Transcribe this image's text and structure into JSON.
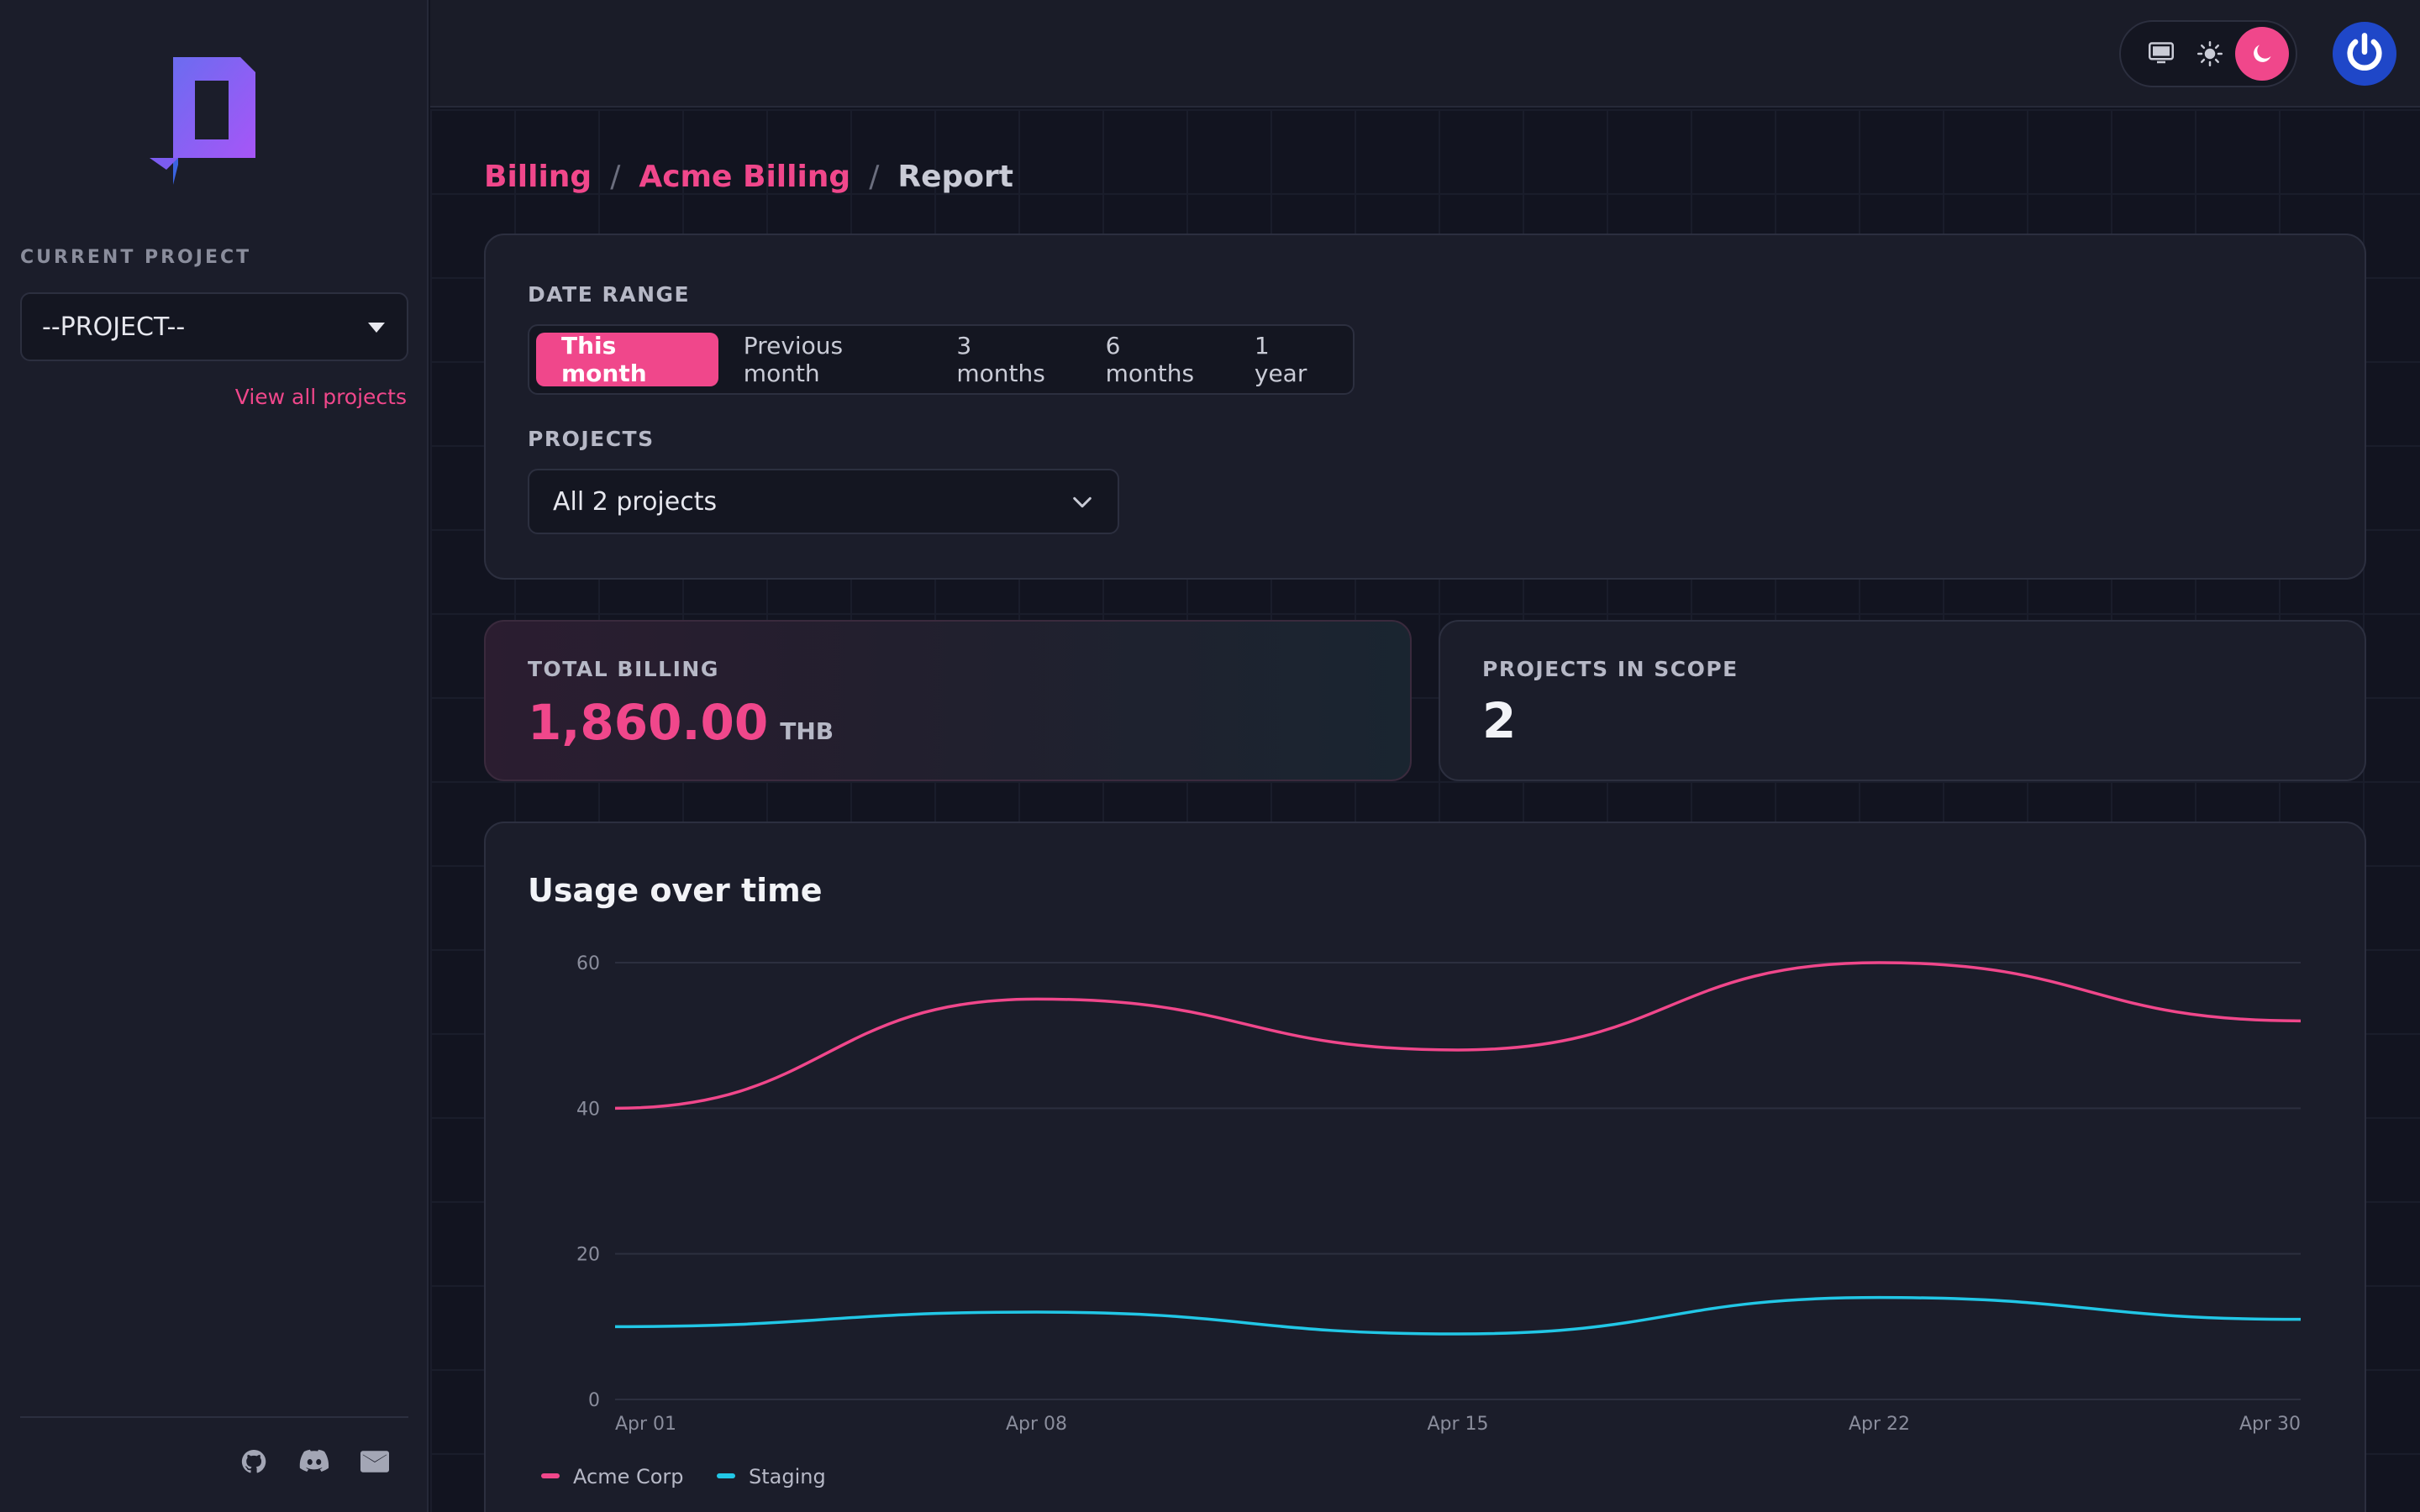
{
  "sidebar": {
    "current_project_label": "CURRENT PROJECT",
    "project_select_value": "--PROJECT--",
    "view_all_link": "View all projects",
    "footer_icons": [
      "github-icon",
      "discord-icon",
      "mail-icon"
    ]
  },
  "topbar": {
    "theme_options": [
      "monitor-icon",
      "sun-icon",
      "moon-icon"
    ],
    "active_theme": "moon-icon"
  },
  "breadcrumb": {
    "items": [
      "Billing",
      "Acme Billing",
      "Report"
    ],
    "separator": "/"
  },
  "filters": {
    "date_range_label": "DATE RANGE",
    "ranges": [
      "This month",
      "Previous month",
      "3 months",
      "6 months",
      "1 year"
    ],
    "active_range": "This month",
    "projects_label": "PROJECTS",
    "projects_value": "All 2 projects"
  },
  "total_billing": {
    "label": "TOTAL BILLING",
    "value": "1,860.00",
    "currency": "THB"
  },
  "projects_in_scope": {
    "label": "PROJECTS IN SCOPE",
    "value": "2"
  },
  "colors": {
    "accent": "#f0478b",
    "series_1": "#f0478b",
    "series_2": "#22c7e6"
  },
  "chart_data": {
    "type": "line",
    "title": "Usage over time",
    "x": [
      "Apr 01",
      "Apr 08",
      "Apr 15",
      "Apr 22",
      "Apr 30"
    ],
    "ylim": [
      0,
      60
    ],
    "yticks": [
      0,
      20,
      40,
      60
    ],
    "grid": true,
    "legend": "bottom-left",
    "series": [
      {
        "name": "Acme Corp",
        "color": "#f0478b",
        "values": [
          40,
          55,
          48,
          60,
          52
        ]
      },
      {
        "name": "Staging",
        "color": "#22c7e6",
        "values": [
          10,
          12,
          9,
          14,
          11
        ]
      }
    ]
  }
}
